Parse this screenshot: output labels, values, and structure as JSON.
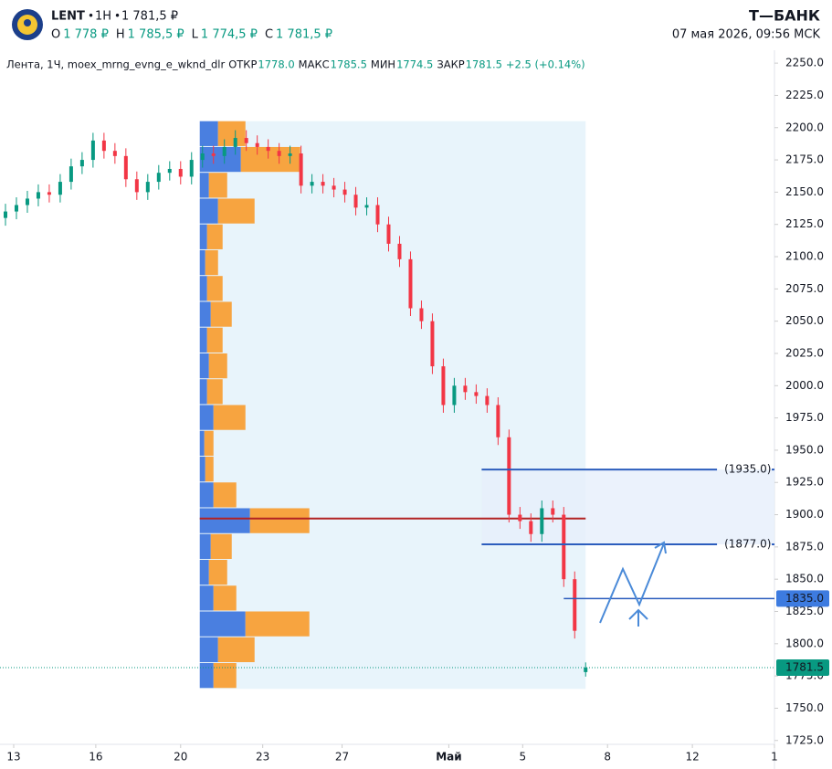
{
  "header": {
    "ticker": "LENT",
    "interval": "1H",
    "price": "1 781,5 ₽",
    "ohlc": [
      {
        "key": "О",
        "value": "1 778 ₽"
      },
      {
        "key": "Н",
        "value": "1 785,5 ₽"
      },
      {
        "key": "L",
        "value": "1 774,5 ₽"
      },
      {
        "key": "С",
        "value": "1 781,5 ₽"
      }
    ],
    "brand": "Т—БАНК",
    "datetime": "07 мая 2026, 09:56 MCK"
  },
  "chart_data": {
    "type": "candlestick",
    "legend": {
      "name": "Лента, 1Ч, moex_mrng_evng_e_wknd_dlr",
      "items": [
        {
          "key": "ОТКР",
          "value": "1778.0"
        },
        {
          "key": "МАКС",
          "value": "1785.5"
        },
        {
          "key": "МИН",
          "value": "1774.5"
        },
        {
          "key": "ЗАКР",
          "value": "1781.5"
        }
      ],
      "change": "+2.5 (+0.14%)"
    },
    "up_color": "#089981",
    "down_color": "#f23645",
    "xlim": [
      0,
      28.2
    ],
    "ylim": [
      1722,
      2260
    ],
    "xticks": [
      {
        "value": 0.4,
        "label": "13"
      },
      {
        "value": 3.4,
        "label": "16"
      },
      {
        "value": 6.5,
        "label": "20"
      },
      {
        "value": 9.5,
        "label": "23"
      },
      {
        "value": 12.4,
        "label": "27"
      },
      {
        "value": 16.3,
        "label": "Май"
      },
      {
        "value": 19.0,
        "label": "5"
      },
      {
        "value": 22.1,
        "label": "8"
      },
      {
        "value": 25.2,
        "label": "12"
      },
      {
        "value": 28.2,
        "label": "1"
      }
    ],
    "yticks": [
      {
        "value": 1725,
        "label": "1725.0"
      },
      {
        "value": 1750,
        "label": "1750.0"
      },
      {
        "value": 1775,
        "label": "1775.0"
      },
      {
        "value": 1800,
        "label": "1800.0"
      },
      {
        "value": 1825,
        "label": "1825.0"
      },
      {
        "value": 1850,
        "label": "1850.0"
      },
      {
        "value": 1875,
        "label": "1875.0"
      },
      {
        "value": 1900,
        "label": "1900.0"
      },
      {
        "value": 1925,
        "label": "1925.0"
      },
      {
        "value": 1950,
        "label": "1950.0"
      },
      {
        "value": 1975,
        "label": "1975.0"
      },
      {
        "value": 2000,
        "label": "2000.0"
      },
      {
        "value": 2025,
        "label": "2025.0"
      },
      {
        "value": 2050,
        "label": "2050.0"
      },
      {
        "value": 2075,
        "label": "2075.0"
      },
      {
        "value": 2100,
        "label": "2100.0"
      },
      {
        "value": 2125,
        "label": "2125.0"
      },
      {
        "value": 2150,
        "label": "2150.0"
      },
      {
        "value": 2175,
        "label": "2175.0"
      },
      {
        "value": 2200,
        "label": "2200.0"
      },
      {
        "value": 2225,
        "label": "2225.0"
      },
      {
        "value": 2250,
        "label": "2250.0"
      }
    ],
    "x": [
      0.1,
      0.5,
      0.9,
      1.3,
      1.7,
      2.1,
      2.5,
      2.9,
      3.3,
      3.7,
      4.1,
      4.5,
      4.9,
      5.3,
      5.7,
      6.1,
      6.5,
      6.9,
      7.3,
      7.7,
      8.1,
      8.5,
      8.9,
      9.3,
      9.7,
      10.1,
      10.5,
      10.9,
      11.3,
      11.7,
      12.1,
      12.5,
      12.9,
      13.3,
      13.7,
      14.1,
      14.5,
      14.9,
      15.3,
      15.7,
      16.1,
      16.5,
      16.9,
      17.3,
      17.7,
      18.1,
      18.5,
      18.9,
      19.3,
      19.7,
      20.1,
      20.5,
      20.9,
      21.3
    ],
    "open": [
      2130,
      2135,
      2140,
      2145,
      2150,
      2148,
      2158,
      2170,
      2175,
      2190,
      2182,
      2178,
      2160,
      2150,
      2158,
      2165,
      2168,
      2162,
      2175,
      2180,
      2178,
      2185,
      2192,
      2188,
      2185,
      2182,
      2178,
      2180,
      2155,
      2158,
      2155,
      2152,
      2148,
      2138,
      2140,
      2125,
      2110,
      2098,
      2060,
      2050,
      2015,
      1985,
      2000,
      1995,
      1992,
      1985,
      1960,
      1900,
      1895,
      1885,
      1905,
      1900,
      1850,
      1778
    ],
    "high": [
      2141,
      2146,
      2151,
      2156,
      2156,
      2164,
      2176,
      2181,
      2196,
      2196,
      2188,
      2184,
      2166,
      2164,
      2171,
      2174,
      2174,
      2181,
      2186,
      2186,
      2191,
      2198,
      2198,
      2194,
      2191,
      2188,
      2186,
      2186,
      2164,
      2164,
      2161,
      2158,
      2154,
      2146,
      2146,
      2131,
      2116,
      2104,
      2066,
      2056,
      2021,
      2006,
      2006,
      2001,
      1998,
      1991,
      1966,
      1906,
      1901,
      1911,
      1911,
      1906,
      1856,
      1785.5
    ],
    "low": [
      2124,
      2129,
      2134,
      2139,
      2142,
      2142,
      2152,
      2164,
      2169,
      2176,
      2172,
      2154,
      2144,
      2144,
      2152,
      2159,
      2156,
      2156,
      2169,
      2172,
      2172,
      2179,
      2182,
      2179,
      2176,
      2172,
      2172,
      2149,
      2149,
      2149,
      2146,
      2142,
      2132,
      2132,
      2119,
      2104,
      2092,
      2054,
      2044,
      2009,
      1979,
      1979,
      1989,
      1986,
      1979,
      1954,
      1894,
      1889,
      1879,
      1879,
      1894,
      1844,
      1804,
      1774.5
    ],
    "close": [
      2135,
      2140,
      2145,
      2150,
      2148,
      2158,
      2170,
      2175,
      2190,
      2182,
      2178,
      2160,
      2150,
      2158,
      2165,
      2168,
      2162,
      2175,
      2180,
      2178,
      2185,
      2192,
      2188,
      2185,
      2182,
      2178,
      2180,
      2155,
      2158,
      2155,
      2152,
      2148,
      2138,
      2140,
      2125,
      2110,
      2098,
      2060,
      2050,
      2015,
      1985,
      2000,
      1995,
      1992,
      1985,
      1960,
      1900,
      1895,
      1885,
      1905,
      1900,
      1850,
      1810,
      1781.5
    ],
    "profile": {
      "x_range": [
        7.2,
        21.3
      ],
      "bins": [
        1765,
        1785,
        1805,
        1825,
        1845,
        1865,
        1885,
        1905,
        1925,
        1945,
        1965,
        1985,
        2005,
        2025,
        2045,
        2065,
        2085,
        2105,
        2125,
        2145,
        2165,
        2185,
        2205
      ],
      "up": [
        15,
        20,
        50,
        15,
        10,
        12,
        55,
        15,
        6,
        5,
        15,
        8,
        10,
        8,
        12,
        8,
        6,
        8,
        20,
        10,
        45,
        20
      ],
      "down": [
        25,
        40,
        70,
        25,
        20,
        23,
        65,
        25,
        9,
        10,
        35,
        17,
        20,
        17,
        23,
        17,
        14,
        17,
        40,
        20,
        65,
        30
      ],
      "up_color": "#4a7fe0",
      "down_color": "#f7a440",
      "area_color": "#e8f4fb",
      "poc": 1897,
      "poc_color": "#b22222"
    },
    "zone": {
      "from": 1877,
      "to": 1935,
      "x_start": 17.5,
      "color": "#e6effb"
    },
    "levels": [
      {
        "value": 1935,
        "label": "(1935.0)",
        "x_range": [
          17.5,
          26.1
        ]
      },
      {
        "value": 1877,
        "label": "(1877.0)",
        "x_range": [
          17.5,
          26.1
        ]
      }
    ],
    "marker": {
      "value": 1835,
      "label": "1835.0",
      "x_start": 20.5
    },
    "last": {
      "value": 1781.5,
      "label": "1781.5"
    },
    "level_color": "#2c5dbd"
  }
}
